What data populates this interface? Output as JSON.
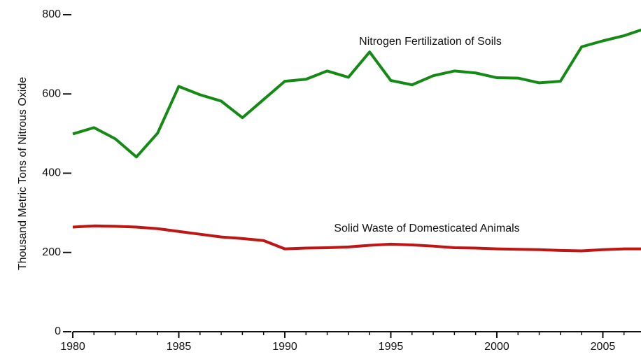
{
  "chart_data": {
    "type": "line",
    "y_label": "Thousand Metric Tons of Nitrous Oxide",
    "x": [
      1980,
      1981,
      1982,
      1983,
      1984,
      1985,
      1986,
      1987,
      1988,
      1989,
      1990,
      1991,
      1992,
      1993,
      1994,
      1995,
      1996,
      1997,
      1998,
      1999,
      2000,
      2001,
      2002,
      2003,
      2004,
      2005,
      2006,
      2007
    ],
    "series": [
      {
        "name": "Nitrogen Fertilization of Soils",
        "color": "#138a13",
        "values": [
          499,
          515,
          487,
          441,
          501,
          619,
          598,
          582,
          540,
          586,
          632,
          637,
          658,
          642,
          706,
          634,
          623,
          646,
          658,
          653,
          641,
          640,
          628,
          632,
          719,
          734,
          747,
          765
        ]
      },
      {
        "name": "Solid Waste of Domesticated Animals",
        "color": "#c01515",
        "values": [
          264,
          267,
          266,
          264,
          260,
          253,
          246,
          239,
          235,
          230,
          209,
          211,
          212,
          214,
          218,
          221,
          219,
          216,
          212,
          211,
          209,
          208,
          207,
          205,
          204,
          207,
          209,
          209
        ]
      }
    ],
    "xlim": [
      1980,
      2006.8
    ],
    "xticks": [
      1980,
      1985,
      1990,
      1995,
      2000,
      2005
    ],
    "ylim": [
      0,
      800
    ],
    "yticks": [
      0,
      200,
      400,
      600,
      800
    ]
  }
}
